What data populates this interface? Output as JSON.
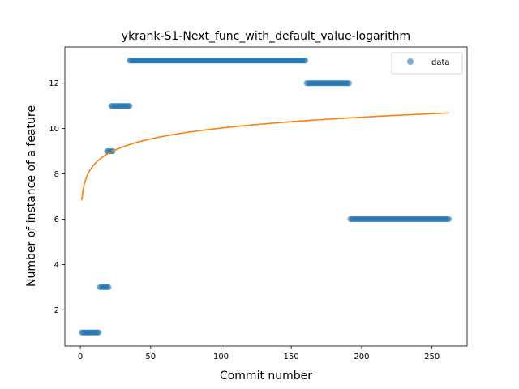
{
  "chart_data": {
    "type": "scatter",
    "title": "ykrank-S1-Next_func_with_default_value-logarithm",
    "xlabel": "Commit number",
    "ylabel": "Number of instance of a feature",
    "xlim": [
      -11,
      275
    ],
    "ylim": [
      0.4,
      13.6
    ],
    "xticks": [
      0,
      50,
      100,
      150,
      200,
      250
    ],
    "yticks": [
      2,
      4,
      6,
      8,
      10,
      12
    ],
    "grid": false,
    "legend": {
      "placement": "top-right",
      "entries": [
        "data"
      ]
    },
    "colors": {
      "data": "#1f77b4",
      "fit": "#ff7f0e"
    },
    "series": [
      {
        "name": "data",
        "kind": "scatter",
        "segments": [
          {
            "x_start": 1,
            "x_end": 13,
            "y": 1
          },
          {
            "x_start": 14,
            "x_end": 20,
            "y": 3
          },
          {
            "x_start": 19,
            "x_end": 23,
            "y": 9
          },
          {
            "x_start": 22,
            "x_end": 35,
            "y": 11
          },
          {
            "x_start": 35,
            "x_end": 160,
            "y": 13
          },
          {
            "x_start": 161,
            "x_end": 191,
            "y": 12
          },
          {
            "x_start": 192,
            "x_end": 262,
            "y": 6
          }
        ]
      },
      {
        "kind": "line",
        "model": "logarithmic",
        "a": 6.83,
        "b": 0.693,
        "x_range": [
          1,
          262
        ]
      }
    ]
  }
}
